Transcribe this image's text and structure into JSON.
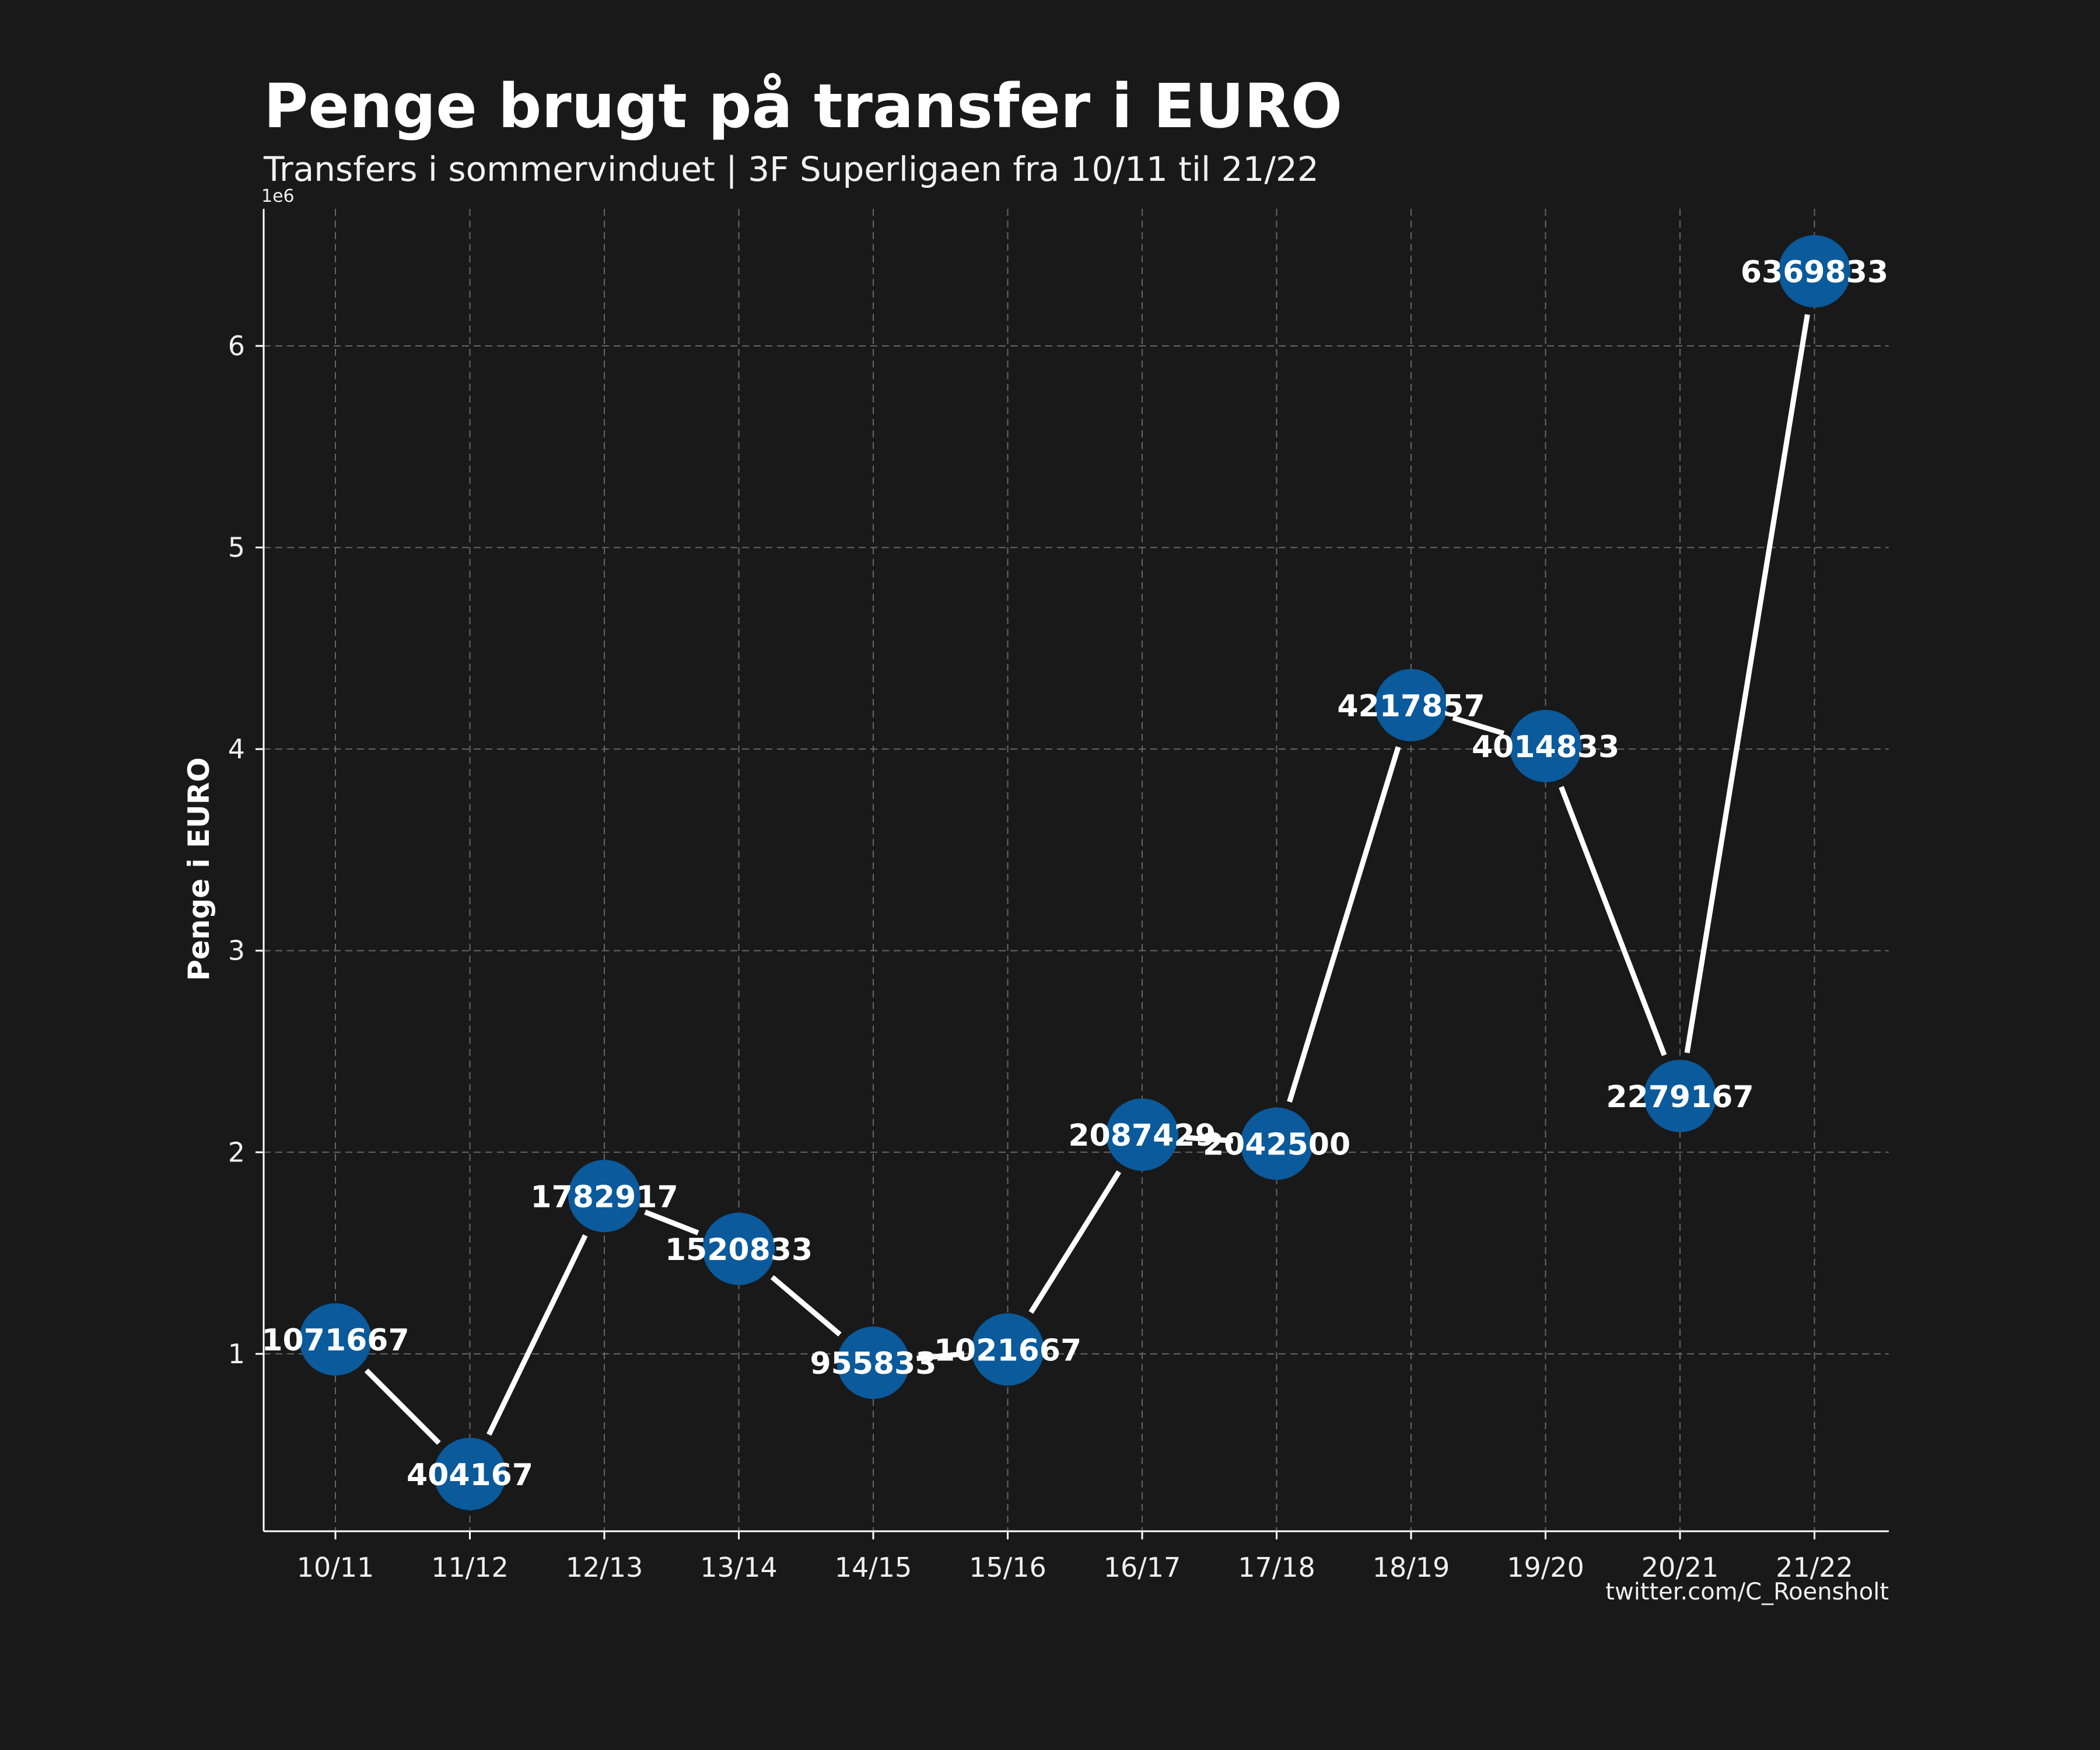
{
  "title": "Penge brugt på transfer i EURO",
  "subtitle": "Transfers i sommervinduet | 3F Superligaen fra 10/11 til 21/22",
  "credit": "twitter.com/C_Roensholt",
  "colors": {
    "background": "#191919",
    "marker": "#0a5a9c",
    "line": "#ffffff",
    "grid": "#666666",
    "text": "#ffffff"
  },
  "chart_data": {
    "type": "line",
    "title": "Penge brugt på transfer i EURO",
    "subtitle": "Transfers i sommervinduet | 3F Superligaen fra 10/11 til 21/22",
    "xlabel": "",
    "ylabel": "Penge i EURO",
    "y_multiplier_label": "1e6",
    "categories": [
      "10/11",
      "11/12",
      "12/13",
      "13/14",
      "14/15",
      "15/16",
      "16/17",
      "17/18",
      "18/19",
      "19/20",
      "20/21",
      "21/22"
    ],
    "values": [
      1071667,
      404167,
      1782917,
      1520833,
      955833,
      1021667,
      2087429,
      2042500,
      4217857,
      4014833,
      2279167,
      6369833
    ],
    "point_labels": [
      "1071667",
      "404167",
      "1782917",
      "1520833",
      "955833",
      "1021667",
      "2087429",
      "2042500",
      "4217857",
      "4014833",
      "2279167",
      "6369833"
    ],
    "y_ticks": [
      1,
      2,
      3,
      4,
      5,
      6
    ],
    "y_tick_labels": [
      "1",
      "2",
      "3",
      "4",
      "5",
      "6"
    ],
    "ylim": [
      120000,
      6680000
    ],
    "grid": true,
    "legend": "none"
  }
}
